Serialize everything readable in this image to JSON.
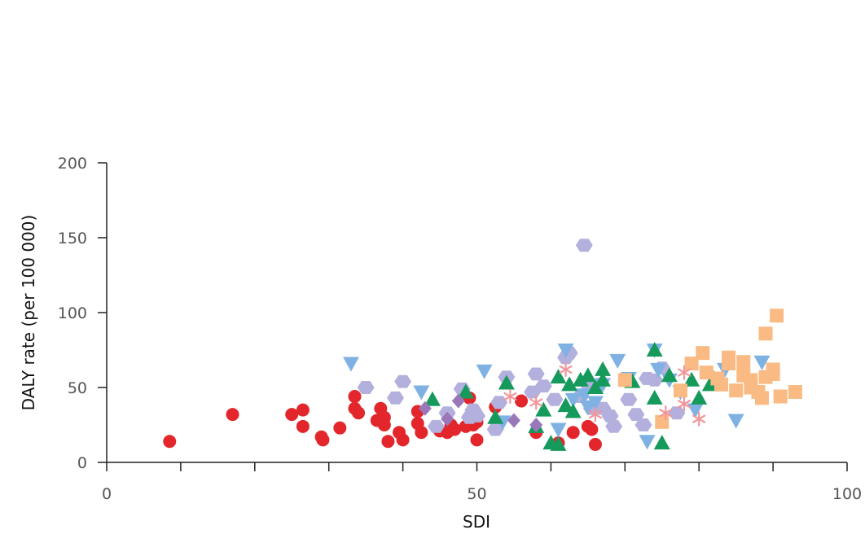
{
  "chart_data": {
    "type": "scatter",
    "title": "",
    "xlabel": "SDI",
    "ylabel": "DALY rate (per 100 000)",
    "xlim": [
      0,
      100
    ],
    "ylim": [
      0,
      200
    ],
    "x_tick_labels": [
      "0",
      "50",
      "100"
    ],
    "x_tick_values": [
      0,
      50,
      100
    ],
    "x_minor_ticks": [
      10,
      20,
      30,
      40,
      60,
      70,
      80,
      90
    ],
    "y_tick_labels": [
      "0",
      "50",
      "100",
      "150",
      "200"
    ],
    "y_tick_values": [
      0,
      50,
      100,
      150,
      200
    ],
    "grid": false,
    "legend": "none",
    "series": [
      {
        "marker": "circle",
        "color": "#e3262b",
        "points": [
          [
            8.5,
            14
          ],
          [
            17,
            32
          ],
          [
            25,
            32
          ],
          [
            26.5,
            35
          ],
          [
            26.5,
            24
          ],
          [
            29,
            17
          ],
          [
            29.2,
            15
          ],
          [
            31.5,
            23
          ],
          [
            33.5,
            36
          ],
          [
            33.5,
            44
          ],
          [
            34,
            33
          ],
          [
            36.5,
            28
          ],
          [
            37,
            36
          ],
          [
            37.5,
            25
          ],
          [
            37.5,
            30
          ],
          [
            38,
            14
          ],
          [
            39.5,
            20
          ],
          [
            40,
            15
          ],
          [
            42,
            34
          ],
          [
            42,
            26
          ],
          [
            42.5,
            20
          ],
          [
            45,
            21
          ],
          [
            46,
            20
          ],
          [
            46.5,
            25
          ],
          [
            47,
            22
          ],
          [
            48.5,
            24
          ],
          [
            49,
            43
          ],
          [
            49.5,
            25
          ],
          [
            50,
            27
          ],
          [
            50,
            15
          ],
          [
            52.5,
            37
          ],
          [
            56,
            41
          ],
          [
            58,
            20
          ],
          [
            61,
            13
          ],
          [
            63,
            20
          ],
          [
            65,
            24
          ],
          [
            65.5,
            22
          ],
          [
            66,
            12
          ]
        ]
      },
      {
        "marker": "hexagon",
        "color": "#b3b0de",
        "points": [
          [
            35,
            50
          ],
          [
            39,
            43
          ],
          [
            40,
            54
          ],
          [
            44.5,
            24
          ],
          [
            46,
            33
          ],
          [
            48,
            49
          ],
          [
            49,
            30
          ],
          [
            49.5,
            35
          ],
          [
            50,
            31
          ],
          [
            52.5,
            22
          ],
          [
            53,
            40
          ],
          [
            54,
            57
          ],
          [
            57.5,
            47
          ],
          [
            58,
            59
          ],
          [
            59,
            51
          ],
          [
            60.5,
            42
          ],
          [
            62.5,
            73
          ],
          [
            62,
            70
          ],
          [
            64,
            44
          ],
          [
            64.5,
            145
          ],
          [
            65,
            52
          ],
          [
            65.5,
            36
          ],
          [
            67,
            36
          ],
          [
            68,
            31
          ],
          [
            68.5,
            24
          ],
          [
            70.5,
            42
          ],
          [
            71.5,
            32
          ],
          [
            72.5,
            25
          ],
          [
            73,
            56
          ],
          [
            74,
            55
          ],
          [
            75,
            63
          ],
          [
            77,
            33
          ]
        ]
      },
      {
        "marker": "triangle-down",
        "color": "#7fb2e2",
        "points": [
          [
            33,
            66
          ],
          [
            42.5,
            47
          ],
          [
            51,
            61
          ],
          [
            53.5,
            27
          ],
          [
            62,
            75
          ],
          [
            61,
            22
          ],
          [
            63,
            42
          ],
          [
            64.5,
            45
          ],
          [
            65,
            37
          ],
          [
            66,
            40
          ],
          [
            67,
            52
          ],
          [
            69,
            68
          ],
          [
            70.5,
            56
          ],
          [
            73,
            14
          ],
          [
            74,
            75
          ],
          [
            74.5,
            62
          ],
          [
            76,
            55
          ],
          [
            77.5,
            47
          ],
          [
            79.5,
            35
          ],
          [
            83.5,
            62
          ],
          [
            85,
            28
          ],
          [
            88.5,
            67
          ]
        ]
      },
      {
        "marker": "triangle-up",
        "color": "#159a5c",
        "points": [
          [
            44,
            42
          ],
          [
            48.5,
            47
          ],
          [
            52.5,
            30
          ],
          [
            54,
            53
          ],
          [
            58,
            24
          ],
          [
            59,
            35
          ],
          [
            60,
            13
          ],
          [
            61,
            12
          ],
          [
            61,
            57
          ],
          [
            62,
            38
          ],
          [
            62.5,
            52
          ],
          [
            63,
            34
          ],
          [
            64,
            55
          ],
          [
            65,
            58
          ],
          [
            66,
            50
          ],
          [
            67,
            62
          ],
          [
            67,
            55
          ],
          [
            71,
            54
          ],
          [
            74,
            75
          ],
          [
            74,
            43
          ],
          [
            75,
            13
          ],
          [
            76,
            58
          ],
          [
            79,
            55
          ],
          [
            80,
            43
          ],
          [
            81.5,
            52
          ],
          [
            82,
            56
          ]
        ]
      },
      {
        "marker": "square",
        "color": "#f9bb83",
        "points": [
          [
            70,
            55
          ],
          [
            75,
            27
          ],
          [
            77.5,
            48
          ],
          [
            79,
            66
          ],
          [
            80.5,
            73
          ],
          [
            81,
            60
          ],
          [
            82.5,
            56
          ],
          [
            83,
            52
          ],
          [
            84,
            66
          ],
          [
            84,
            70
          ],
          [
            85,
            48
          ],
          [
            86,
            67
          ],
          [
            86,
            58
          ],
          [
            87,
            55
          ],
          [
            87,
            50
          ],
          [
            88,
            47
          ],
          [
            88.5,
            43
          ],
          [
            89,
            57
          ],
          [
            89,
            86
          ],
          [
            90,
            62
          ],
          [
            90,
            59
          ],
          [
            90.5,
            98
          ],
          [
            91,
            44
          ],
          [
            93,
            47
          ]
        ]
      },
      {
        "marker": "diamond",
        "color": "#9a77b9",
        "points": [
          [
            43,
            36
          ],
          [
            46,
            29
          ],
          [
            47.5,
            41
          ],
          [
            55,
            28
          ],
          [
            58,
            25
          ]
        ]
      },
      {
        "marker": "asterisk",
        "color": "#f2969a",
        "points": [
          [
            54.5,
            44
          ],
          [
            58,
            40
          ],
          [
            62,
            62
          ],
          [
            66,
            32
          ],
          [
            75.5,
            33
          ],
          [
            78,
            39
          ],
          [
            78,
            60
          ],
          [
            80,
            29
          ]
        ]
      }
    ]
  }
}
